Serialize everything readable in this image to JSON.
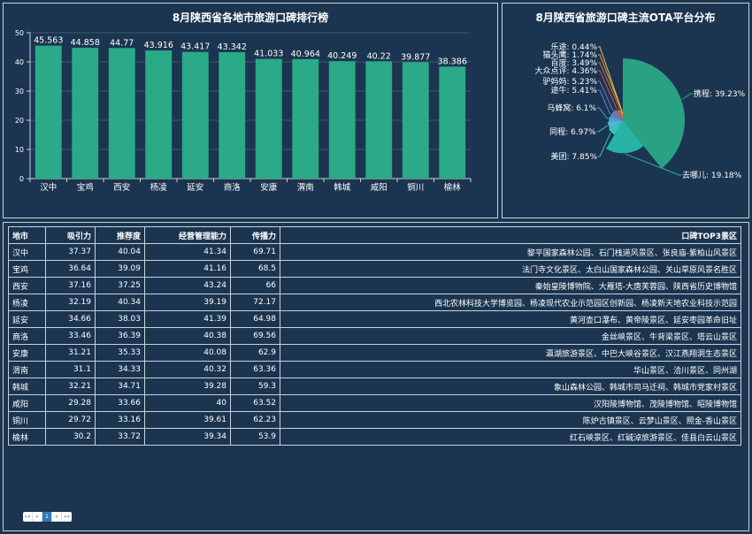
{
  "bar_panel": {
    "title": "8月陕西省各地市旅游口碑排行榜"
  },
  "pie_panel": {
    "title": "8月陕西省旅游口碑主流OTA平台分布"
  },
  "chart_data": [
    {
      "type": "bar",
      "title": "8月陕西省各地市旅游口碑排行榜",
      "categories": [
        "汉中",
        "宝鸡",
        "西安",
        "杨凌",
        "延安",
        "商洛",
        "安康",
        "渭南",
        "韩城",
        "咸阳",
        "铜川",
        "榆林"
      ],
      "values": [
        45.563,
        44.858,
        44.77,
        43.916,
        43.417,
        43.342,
        41.033,
        40.964,
        40.249,
        40.22,
        39.877,
        38.386
      ],
      "value_labels": [
        "45.563",
        "44.858",
        "44.77",
        "43.916",
        "43.417",
        "43.342",
        "41.033",
        "40.964",
        "40.249",
        "40.22",
        "39.877",
        "38.386"
      ],
      "ylim": [
        0,
        50
      ],
      "yticks": [
        0,
        10,
        20,
        30,
        40,
        50
      ],
      "grid": true,
      "bar_color": "#2aaa86"
    },
    {
      "type": "pie",
      "title": "8月陕西省旅游口碑主流OTA平台分布",
      "slices": [
        {
          "name": "携程",
          "value": 39.23,
          "label": "携程: 39.23%",
          "color": "#2aa183"
        },
        {
          "name": "去哪儿",
          "value": 19.18,
          "label": "去哪儿: 19.18%",
          "color": "#27b4a5"
        },
        {
          "name": "美团",
          "value": 7.85,
          "label": "美团: 7.85%",
          "color": "#3dbfc0"
        },
        {
          "name": "同程",
          "value": 6.97,
          "label": "同程: 6.97%",
          "color": "#52b6d1"
        },
        {
          "name": "马蜂窝",
          "value": 6.1,
          "label": "马蜂窝: 6.1%",
          "color": "#4f9fd0"
        },
        {
          "name": "途牛",
          "value": 5.41,
          "label": "途牛: 5.41%",
          "color": "#5a86c4"
        },
        {
          "name": "驴妈妈",
          "value": 5.23,
          "label": "驴妈妈: 5.23%",
          "color": "#7b74b8"
        },
        {
          "name": "大众点评",
          "value": 4.36,
          "label": "大众点评: 4.36%",
          "color": "#c85a5a"
        },
        {
          "name": "百度",
          "value": 3.49,
          "label": "百度: 3.49%",
          "color": "#e06b34"
        },
        {
          "name": "猫头鹰",
          "value": 1.74,
          "label": "猫头鹰: 1.74%",
          "color": "#e8a23a"
        },
        {
          "name": "乐途",
          "value": 0.44,
          "label": "乐途: 0.44%",
          "color": "#f0c44a"
        }
      ],
      "rose": true
    }
  ],
  "table": {
    "headers": [
      "地市",
      "吸引力",
      "推荐度",
      "经营管理能力",
      "传播力",
      "口碑TOP3景区"
    ],
    "rows": [
      [
        "汉中",
        "37.37",
        "40.04",
        "41.34",
        "69.71",
        "黎平国家森林公园、石门栈道风景区、张良庙-紫柏山风景区"
      ],
      [
        "宝鸡",
        "36.64",
        "39.09",
        "41.16",
        "68.5",
        "法门寺文化景区、太白山国家森林公园、关山草原风景名胜区"
      ],
      [
        "西安",
        "37.16",
        "37.25",
        "43.24",
        "66",
        "秦始皇陵博物院、大雁塔-大唐芙蓉园、陕西省历史博物馆"
      ],
      [
        "杨凌",
        "32.19",
        "40.34",
        "39.19",
        "72.17",
        "西北农林科技大学博览园、杨凌现代农业示范园区创新园、杨凌新天地农业科技示范园"
      ],
      [
        "延安",
        "34.66",
        "38.03",
        "41.39",
        "64.98",
        "黄河壶口瀑布、黄帝陵景区、延安枣园革命旧址"
      ],
      [
        "商洛",
        "33.46",
        "36.39",
        "40.38",
        "69.56",
        "金丝峡景区、牛背梁景区、塔云山景区"
      ],
      [
        "安康",
        "31.21",
        "35.33",
        "40.08",
        "62.9",
        "瀛湖旅游景区、中巴大峡谷景区、汉江燕翔洞生态景区"
      ],
      [
        "渭南",
        "31.1",
        "34.33",
        "40.32",
        "63.36",
        "华山景区、洽川景区、同州湖"
      ],
      [
        "韩城",
        "32.21",
        "34.71",
        "39.28",
        "59.3",
        "象山森林公园、韩城市司马迁祠、韩城市党家村景区"
      ],
      [
        "咸阳",
        "29.28",
        "33.66",
        "40",
        "63.52",
        "汉阳陵博物馆、茂陵博物馆、昭陵博物馆"
      ],
      [
        "铜川",
        "29.72",
        "33.16",
        "39.61",
        "62.23",
        "陈炉古镇景区、云梦山景区、照金-香山景区"
      ],
      [
        "榆林",
        "30.2",
        "33.72",
        "39.34",
        "53.9",
        "红石峡景区、红碱淖旅游景区、佳县白云山景区"
      ]
    ]
  },
  "pager": {
    "first": "««",
    "prev": "«",
    "current": "1",
    "next": "»",
    "last": "»»"
  }
}
